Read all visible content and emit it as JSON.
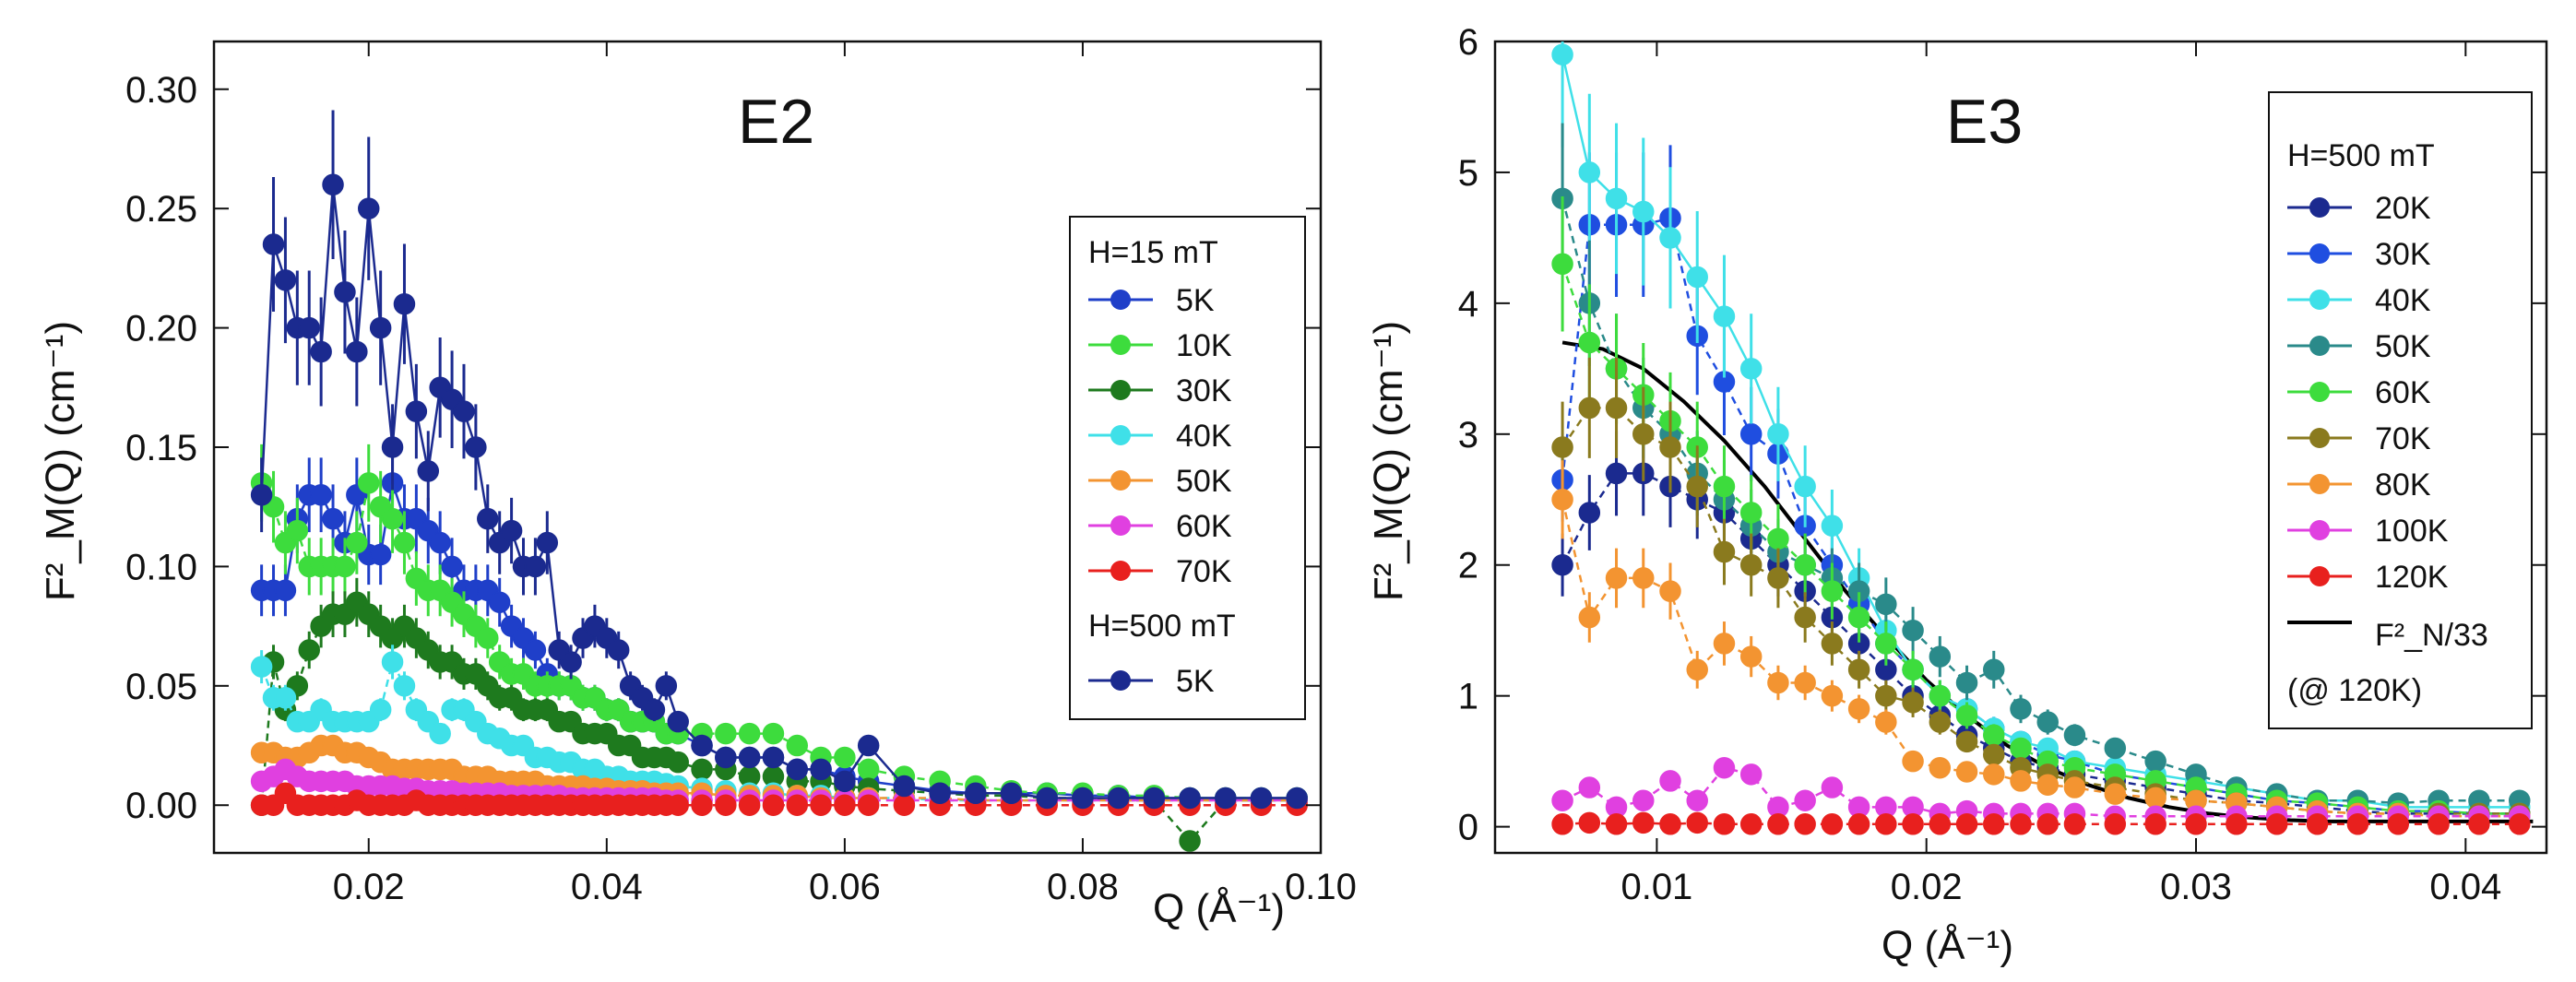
{
  "chart_data": [
    {
      "type": "scatter",
      "panel": "E2",
      "xlabel": "Q (Å⁻¹)",
      "ylabel": "F²_M(Q) (cm⁻¹)",
      "xlim": [
        0.007,
        0.1
      ],
      "ylim": [
        -0.02,
        0.32
      ],
      "xticks": [
        0.02,
        0.04,
        0.06,
        0.08,
        0.1
      ],
      "xticklabels": [
        "0.02",
        "0.04",
        "0.06",
        "0.08",
        "0.10"
      ],
      "yticks": [
        0.0,
        0.05,
        0.1,
        0.15,
        0.2,
        0.25,
        0.3
      ],
      "yticklabels": [
        "0.00",
        "0.05",
        "0.10",
        "0.15",
        "0.20",
        "0.25",
        "0.30"
      ],
      "legend_location": "right",
      "legend_groups": [
        "H=15 mT",
        "H=500 mT"
      ],
      "x": [
        0.011,
        0.012,
        0.013,
        0.014,
        0.015,
        0.016,
        0.017,
        0.018,
        0.019,
        0.02,
        0.021,
        0.022,
        0.023,
        0.024,
        0.025,
        0.026,
        0.027,
        0.028,
        0.029,
        0.03,
        0.031,
        0.032,
        0.033,
        0.034,
        0.035,
        0.036,
        0.037,
        0.038,
        0.039,
        0.04,
        0.041,
        0.042,
        0.043,
        0.044,
        0.045,
        0.046,
        0.048,
        0.05,
        0.052,
        0.054,
        0.056,
        0.058,
        0.06,
        0.062,
        0.065,
        0.068,
        0.071,
        0.074,
        0.077,
        0.08,
        0.083,
        0.086,
        0.089,
        0.092,
        0.095,
        0.098
      ],
      "series": [
        {
          "name": "5K",
          "group": 0,
          "color": "#1f3fc9",
          "line": "solid",
          "values": [
            0.09,
            0.09,
            0.09,
            0.12,
            0.13,
            0.13,
            0.12,
            0.11,
            0.13,
            0.105,
            0.105,
            0.135,
            0.12,
            0.12,
            0.115,
            0.11,
            0.1,
            0.09,
            0.09,
            0.09,
            0.085,
            0.075,
            0.07,
            0.065,
            0.055,
            0.05,
            0.05,
            0.045,
            0.045,
            0.04,
            0.04,
            0.035,
            0.035,
            0.035,
            0.03,
            0.03,
            0.025,
            0.02,
            0.02,
            0.02,
            0.015,
            0.015,
            0.012,
            0.01,
            0.008,
            0.006,
            0.005,
            0.005,
            0.005,
            0.004,
            0.004,
            0.003,
            0.003,
            0.003,
            0.003,
            0.003
          ]
        },
        {
          "name": "10K",
          "group": 0,
          "color": "#3ddc3d",
          "line": "dashed",
          "values": [
            0.135,
            0.125,
            0.11,
            0.115,
            0.1,
            0.1,
            0.1,
            0.1,
            0.11,
            0.135,
            0.125,
            0.12,
            0.11,
            0.095,
            0.09,
            0.09,
            0.085,
            0.08,
            0.075,
            0.07,
            0.06,
            0.055,
            0.055,
            0.05,
            0.05,
            0.05,
            0.05,
            0.045,
            0.045,
            0.04,
            0.04,
            0.035,
            0.035,
            0.035,
            0.03,
            0.03,
            0.03,
            0.03,
            0.03,
            0.03,
            0.025,
            0.02,
            0.02,
            0.015,
            0.012,
            0.01,
            0.008,
            0.006,
            0.005,
            0.005,
            0.004,
            0.004,
            0.003,
            0.003,
            0.003,
            0.003
          ]
        },
        {
          "name": "30K",
          "group": 0,
          "color": "#1e7a1e",
          "line": "dashed",
          "values": [
            0.0,
            0.06,
            0.04,
            0.05,
            0.065,
            0.075,
            0.08,
            0.08,
            0.085,
            0.08,
            0.075,
            0.07,
            0.075,
            0.07,
            0.065,
            0.06,
            0.06,
            0.055,
            0.055,
            0.05,
            0.045,
            0.045,
            0.04,
            0.04,
            0.04,
            0.035,
            0.035,
            0.03,
            0.03,
            0.03,
            0.025,
            0.025,
            0.02,
            0.02,
            0.02,
            0.018,
            0.015,
            0.015,
            0.012,
            0.012,
            0.01,
            0.01,
            0.008,
            0.007,
            0.006,
            0.005,
            0.004,
            0.004,
            0.003,
            0.003,
            0.002,
            0.002,
            -0.015,
            0.002,
            0.002,
            0.002
          ]
        },
        {
          "name": "40K",
          "group": 0,
          "color": "#3fe0e8",
          "line": "dashed",
          "values": [
            0.058,
            0.045,
            0.045,
            0.035,
            0.035,
            0.04,
            0.035,
            0.035,
            0.035,
            0.035,
            0.04,
            0.06,
            0.05,
            0.04,
            0.035,
            0.03,
            0.04,
            0.04,
            0.035,
            0.03,
            0.028,
            0.025,
            0.025,
            0.02,
            0.02,
            0.018,
            0.018,
            0.015,
            0.015,
            0.012,
            0.012,
            0.01,
            0.01,
            0.01,
            0.009,
            0.008,
            0.007,
            0.006,
            0.005,
            0.005,
            0.004,
            0.004,
            0.003,
            0.003,
            0.003,
            0.002,
            0.002,
            0.002,
            0.002,
            0.002,
            0.002,
            0.002,
            0.002,
            0.002,
            0.002,
            0.002
          ]
        },
        {
          "name": "50K",
          "group": 0,
          "color": "#f39431",
          "line": "dashed",
          "values": [
            0.022,
            0.022,
            0.02,
            0.02,
            0.022,
            0.025,
            0.025,
            0.022,
            0.022,
            0.02,
            0.018,
            0.015,
            0.015,
            0.015,
            0.015,
            0.015,
            0.015,
            0.012,
            0.012,
            0.012,
            0.01,
            0.01,
            0.01,
            0.01,
            0.008,
            0.008,
            0.008,
            0.008,
            0.007,
            0.007,
            0.006,
            0.006,
            0.006,
            0.005,
            0.005,
            0.005,
            0.005,
            0.004,
            0.004,
            0.004,
            0.004,
            0.003,
            0.003,
            0.003,
            0.003,
            0.003,
            0.002,
            0.002,
            0.002,
            0.002,
            0.002,
            0.002,
            0.002,
            0.002,
            0.002,
            0.002
          ]
        },
        {
          "name": "60K",
          "group": 0,
          "color": "#e040e0",
          "line": "dashed",
          "values": [
            0.01,
            0.012,
            0.015,
            0.012,
            0.01,
            0.01,
            0.01,
            0.01,
            0.008,
            0.008,
            0.008,
            0.008,
            0.007,
            0.007,
            0.006,
            0.006,
            0.006,
            0.005,
            0.005,
            0.005,
            0.005,
            0.004,
            0.004,
            0.004,
            0.004,
            0.004,
            0.003,
            0.003,
            0.003,
            0.003,
            0.003,
            0.003,
            0.003,
            0.003,
            0.002,
            0.002,
            0.002,
            0.002,
            0.002,
            0.002,
            0.002,
            0.002,
            0.002,
            0.002,
            0.002,
            0.002,
            0.002,
            0.002,
            0.002,
            0.002,
            0.002,
            0.002,
            0.002,
            0.002,
            0.002,
            0.002
          ]
        },
        {
          "name": "70K",
          "group": 0,
          "color": "#e8201e",
          "line": "dashed",
          "values": [
            0.0,
            0.0,
            0.005,
            0.0,
            0.0,
            0.0,
            0.0,
            0.0,
            0.002,
            0.0,
            0.0,
            0.0,
            0.0,
            0.002,
            0.0,
            0.0,
            0.0,
            0.0,
            0.0,
            0.0,
            0.0,
            0.0,
            0.0,
            0.0,
            0.0,
            0.0,
            0.0,
            0.0,
            0.0,
            0.0,
            0.0,
            0.0,
            0.0,
            0.0,
            0.0,
            0.0,
            0.0,
            0.0,
            0.0,
            0.0,
            0.0,
            0.0,
            0.0,
            0.0,
            0.0,
            0.0,
            0.0,
            0.0,
            0.0,
            0.0,
            0.0,
            0.0,
            0.0,
            0.0,
            0.0,
            0.0
          ]
        },
        {
          "name": "5K",
          "group": 1,
          "color": "#1b2a8f",
          "line": "solid",
          "values": [
            0.13,
            0.235,
            0.22,
            0.2,
            0.2,
            0.19,
            0.26,
            0.215,
            0.19,
            0.25,
            0.2,
            0.15,
            0.21,
            0.165,
            0.14,
            0.175,
            0.17,
            0.165,
            0.15,
            0.12,
            0.11,
            0.115,
            0.1,
            0.1,
            0.11,
            0.065,
            0.06,
            0.07,
            0.075,
            0.07,
            0.065,
            0.05,
            0.045,
            0.04,
            0.05,
            0.035,
            0.025,
            0.02,
            0.02,
            0.02,
            0.015,
            0.015,
            0.01,
            0.025,
            0.008,
            0.005,
            0.005,
            0.005,
            0.003,
            0.003,
            0.003,
            0.003,
            0.003,
            0.003,
            0.003,
            0.003
          ]
        }
      ]
    },
    {
      "type": "scatter",
      "panel": "E3",
      "xlabel": "Q (Å⁻¹)",
      "ylabel": "F²_M(Q) (cm⁻¹)",
      "xlim": [
        0.004,
        0.043
      ],
      "ylim": [
        -0.2,
        6
      ],
      "xticks": [
        0.01,
        0.02,
        0.03,
        0.04
      ],
      "xticklabels": [
        "0.01",
        "0.02",
        "0.03",
        "0.04"
      ],
      "yticks": [
        0,
        1,
        2,
        3,
        4,
        5,
        6
      ],
      "yticklabels": [
        "0",
        "1",
        "2",
        "3",
        "4",
        "5",
        "6"
      ],
      "legend_location": "top-right",
      "legend_groups": [
        "H=500 mT"
      ],
      "x": [
        0.0065,
        0.0075,
        0.0085,
        0.0095,
        0.0105,
        0.0115,
        0.0125,
        0.0135,
        0.0145,
        0.0155,
        0.0165,
        0.0175,
        0.0185,
        0.0195,
        0.0205,
        0.0215,
        0.0225,
        0.0235,
        0.0245,
        0.0255,
        0.027,
        0.0285,
        0.03,
        0.0315,
        0.033,
        0.0345,
        0.036,
        0.0375,
        0.039,
        0.0405,
        0.042
      ],
      "series": [
        {
          "name": "20K",
          "color": "#1b2a8f",
          "line": "dashed",
          "values": [
            2.0,
            2.4,
            2.7,
            2.7,
            2.6,
            2.5,
            2.4,
            2.2,
            2.0,
            1.8,
            1.6,
            1.4,
            1.2,
            1.0,
            0.85,
            0.7,
            0.6,
            0.5,
            0.45,
            0.4,
            0.35,
            0.3,
            0.25,
            0.2,
            0.18,
            0.15,
            0.12,
            0.1,
            0.1,
            0.1,
            0.1
          ]
        },
        {
          "name": "30K",
          "color": "#1f4ee0",
          "line": "dashed",
          "values": [
            2.65,
            4.6,
            4.6,
            4.6,
            4.65,
            3.75,
            3.4,
            3.0,
            2.85,
            2.3,
            2.0,
            1.7,
            1.4,
            1.2,
            1.0,
            0.9,
            0.75,
            0.65,
            0.55,
            0.5,
            0.4,
            0.35,
            0.3,
            0.25,
            0.2,
            0.18,
            0.15,
            0.12,
            0.12,
            0.1,
            0.1
          ]
        },
        {
          "name": "40K",
          "color": "#3fe0e8",
          "line": "solid",
          "values": [
            5.9,
            5.0,
            4.8,
            4.7,
            4.5,
            4.2,
            3.9,
            3.5,
            3.0,
            2.6,
            2.3,
            1.9,
            1.5,
            1.2,
            1.0,
            0.9,
            0.75,
            0.65,
            0.6,
            0.5,
            0.45,
            0.4,
            0.35,
            0.3,
            0.25,
            0.2,
            0.2,
            0.15,
            0.15,
            0.15,
            0.15
          ]
        },
        {
          "name": "50K",
          "color": "#2a8a8a",
          "line": "dashed",
          "values": [
            4.8,
            4.0,
            3.5,
            3.2,
            3.0,
            2.7,
            2.5,
            2.3,
            2.1,
            2.0,
            1.9,
            1.8,
            1.7,
            1.5,
            1.3,
            1.1,
            1.2,
            0.9,
            0.8,
            0.7,
            0.6,
            0.5,
            0.4,
            0.3,
            0.25,
            0.2,
            0.2,
            0.18,
            0.2,
            0.2,
            0.2
          ]
        },
        {
          "name": "60K",
          "color": "#3ddc3d",
          "line": "dashed",
          "values": [
            4.3,
            3.7,
            3.5,
            3.3,
            3.1,
            2.9,
            2.6,
            2.4,
            2.2,
            2.0,
            1.8,
            1.6,
            1.4,
            1.2,
            1.0,
            0.85,
            0.7,
            0.6,
            0.5,
            0.45,
            0.4,
            0.35,
            0.3,
            0.25,
            0.2,
            0.18,
            0.15,
            0.12,
            0.12,
            0.1,
            0.1
          ]
        },
        {
          "name": "70K",
          "color": "#8a7a1e",
          "line": "dashed",
          "values": [
            2.9,
            3.2,
            3.2,
            3.0,
            2.9,
            2.6,
            2.1,
            2.0,
            1.9,
            1.6,
            1.4,
            1.2,
            1.0,
            0.95,
            0.8,
            0.65,
            0.55,
            0.45,
            0.4,
            0.35,
            0.3,
            0.25,
            0.2,
            0.18,
            0.15,
            0.12,
            0.1,
            0.1,
            0.1,
            0.1,
            0.1
          ]
        },
        {
          "name": "80K",
          "color": "#f39431",
          "line": "dashed",
          "values": [
            2.5,
            1.6,
            1.9,
            1.9,
            1.8,
            1.2,
            1.4,
            1.3,
            1.1,
            1.1,
            1.0,
            0.9,
            0.8,
            0.5,
            0.45,
            0.42,
            0.4,
            0.35,
            0.32,
            0.3,
            0.25,
            0.22,
            0.2,
            0.18,
            0.15,
            0.12,
            0.1,
            0.1,
            0.08,
            0.08,
            0.08
          ]
        },
        {
          "name": "100K",
          "color": "#e040e0",
          "line": "dashed",
          "values": [
            0.2,
            0.3,
            0.15,
            0.2,
            0.35,
            0.2,
            0.45,
            0.4,
            0.15,
            0.2,
            0.3,
            0.15,
            0.15,
            0.15,
            0.1,
            0.12,
            0.1,
            0.1,
            0.1,
            0.1,
            0.08,
            0.08,
            0.08,
            0.08,
            0.08,
            0.08,
            0.08,
            0.08,
            0.08,
            0.08,
            0.08
          ]
        },
        {
          "name": "120K",
          "color": "#e8201e",
          "line": "dashed",
          "values": [
            0.02,
            0.03,
            0.02,
            0.03,
            0.02,
            0.03,
            0.02,
            0.02,
            0.02,
            0.02,
            0.02,
            0.02,
            0.02,
            0.02,
            0.02,
            0.02,
            0.02,
            0.02,
            0.02,
            0.02,
            0.02,
            0.02,
            0.02,
            0.02,
            0.02,
            0.02,
            0.02,
            0.02,
            0.02,
            0.02,
            0.02
          ]
        }
      ],
      "reference_curve": {
        "name": "F²_N/33",
        "note": "(@ 120K)",
        "color": "#000000",
        "x": [
          0.0065,
          0.008,
          0.0095,
          0.011,
          0.0125,
          0.014,
          0.0155,
          0.017,
          0.0185,
          0.02,
          0.0215,
          0.023,
          0.0245,
          0.026,
          0.0275,
          0.029,
          0.0305,
          0.032,
          0.0335,
          0.035,
          0.0365,
          0.038,
          0.0395,
          0.041,
          0.0425
        ],
        "values": [
          3.7,
          3.65,
          3.5,
          3.25,
          2.95,
          2.6,
          2.2,
          1.8,
          1.45,
          1.12,
          0.85,
          0.62,
          0.45,
          0.32,
          0.22,
          0.15,
          0.1,
          0.07,
          0.05,
          0.04,
          0.04,
          0.04,
          0.04,
          0.04,
          0.04
        ]
      }
    }
  ]
}
